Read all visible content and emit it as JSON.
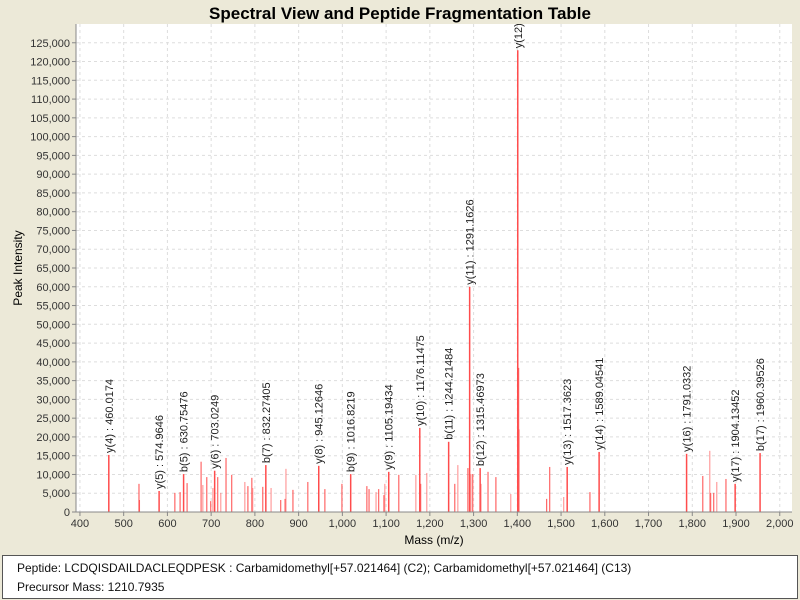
{
  "chart_data": {
    "type": "bar",
    "title": "Spectral View and Peptide Fragmentation Table",
    "xlabel": "Mass (m/z)",
    "ylabel": "Peak Intensity",
    "xlim": [
      391,
      2028
    ],
    "ylim": [
      0,
      130000
    ],
    "grid": true,
    "x_ticks": [
      "400",
      "500",
      "600",
      "700",
      "800",
      "900",
      "1,000",
      "1,100",
      "1,200",
      "1,300",
      "1,400",
      "1,500",
      "1,600",
      "1,700",
      "1,800",
      "1,900",
      "2,000"
    ],
    "x_tick_values": [
      400,
      500,
      600,
      700,
      800,
      900,
      1000,
      1100,
      1200,
      1300,
      1400,
      1500,
      1600,
      1700,
      1800,
      1900,
      2000
    ],
    "y_ticks": [
      "0",
      "5,000",
      "10,000",
      "15,000",
      "20,000",
      "25,000",
      "30,000",
      "35,000",
      "40,000",
      "45,000",
      "50,000",
      "55,000",
      "60,000",
      "65,000",
      "70,000",
      "75,000",
      "80,000",
      "85,000",
      "90,000",
      "95,000",
      "100,000",
      "105,000",
      "110,000",
      "115,000",
      "120,000",
      "125,000"
    ],
    "y_tick_values": [
      0,
      5000,
      10000,
      15000,
      20000,
      25000,
      30000,
      35000,
      40000,
      45000,
      50000,
      55000,
      60000,
      65000,
      70000,
      75000,
      80000,
      85000,
      90000,
      95000,
      100000,
      105000,
      110000,
      115000,
      120000,
      125000
    ],
    "peaks": [
      {
        "mz": 466,
        "intensity": 15200,
        "label": "y(4) : 460.0174"
      },
      {
        "mz": 535,
        "intensity": 7500
      },
      {
        "mz": 536,
        "intensity": 3200
      },
      {
        "mz": 581,
        "intensity": 5600,
        "label": "y(5) : 574.9646"
      },
      {
        "mz": 617,
        "intensity": 5100
      },
      {
        "mz": 629,
        "intensity": 5300
      },
      {
        "mz": 637,
        "intensity": 10100,
        "label": "b(5) : 630.75476"
      },
      {
        "mz": 645,
        "intensity": 7700
      },
      {
        "mz": 677,
        "intensity": 13400
      },
      {
        "mz": 681,
        "intensity": 7200
      },
      {
        "mz": 690,
        "intensity": 9300
      },
      {
        "mz": 699,
        "intensity": 2900
      },
      {
        "mz": 704,
        "intensity": 6400
      },
      {
        "mz": 708,
        "intensity": 11000,
        "label": "y(6) : 703.0249"
      },
      {
        "mz": 715,
        "intensity": 9300
      },
      {
        "mz": 722,
        "intensity": 5100
      },
      {
        "mz": 734,
        "intensity": 14400
      },
      {
        "mz": 747,
        "intensity": 9900
      },
      {
        "mz": 777,
        "intensity": 8000
      },
      {
        "mz": 784,
        "intensity": 6900
      },
      {
        "mz": 793,
        "intensity": 9100
      },
      {
        "mz": 795,
        "intensity": 6400
      },
      {
        "mz": 818,
        "intensity": 6700
      },
      {
        "mz": 825,
        "intensity": 12500,
        "label": "b(7) : 832.27405"
      },
      {
        "mz": 837,
        "intensity": 6400
      },
      {
        "mz": 859,
        "intensity": 3200
      },
      {
        "mz": 869,
        "intensity": 3500
      },
      {
        "mz": 871,
        "intensity": 11500
      },
      {
        "mz": 887,
        "intensity": 5900
      },
      {
        "mz": 921,
        "intensity": 8000
      },
      {
        "mz": 946,
        "intensity": 12300,
        "label": "y(8) : 945.12646"
      },
      {
        "mz": 960,
        "intensity": 6100
      },
      {
        "mz": 999,
        "intensity": 7500
      },
      {
        "mz": 1019,
        "intensity": 10100,
        "label": "b(9) : 1016.8219"
      },
      {
        "mz": 1056,
        "intensity": 6900
      },
      {
        "mz": 1061,
        "intensity": 6100
      },
      {
        "mz": 1077,
        "intensity": 5300
      },
      {
        "mz": 1083,
        "intensity": 6100
      },
      {
        "mz": 1095,
        "intensity": 4500
      },
      {
        "mz": 1097,
        "intensity": 7500
      },
      {
        "mz": 1106,
        "intensity": 10700,
        "label": "y(9) : 1105.19434"
      },
      {
        "mz": 1129,
        "intensity": 9900
      },
      {
        "mz": 1168,
        "intensity": 9900
      },
      {
        "mz": 1177,
        "intensity": 22400,
        "label": "y(10) : 1176.11475"
      },
      {
        "mz": 1179,
        "intensity": 7500
      },
      {
        "mz": 1193,
        "intensity": 10400
      },
      {
        "mz": 1243,
        "intensity": 18700,
        "label": "b(11) : 1244.21484"
      },
      {
        "mz": 1257,
        "intensity": 7500
      },
      {
        "mz": 1264,
        "intensity": 12500
      },
      {
        "mz": 1287,
        "intensity": 11700
      },
      {
        "mz": 1291,
        "intensity": 60000,
        "label": "y(11) : 1291.1626"
      },
      {
        "mz": 1294,
        "intensity": 10100
      },
      {
        "mz": 1298,
        "intensity": 10100
      },
      {
        "mz": 1315,
        "intensity": 11700,
        "label": "b(12) : 1315.46973"
      },
      {
        "mz": 1317,
        "intensity": 7500
      },
      {
        "mz": 1333,
        "intensity": 10700
      },
      {
        "mz": 1351,
        "intensity": 9300
      },
      {
        "mz": 1385,
        "intensity": 4800
      },
      {
        "mz": 1401,
        "intensity": 123000,
        "label": "y(12)"
      },
      {
        "mz": 1403,
        "intensity": 38400
      },
      {
        "mz": 1404,
        "intensity": 22000
      },
      {
        "mz": 1467,
        "intensity": 3500
      },
      {
        "mz": 1474,
        "intensity": 12000
      },
      {
        "mz": 1506,
        "intensity": 4000
      },
      {
        "mz": 1514,
        "intensity": 12000,
        "label": "y(13) : 1517.3623"
      },
      {
        "mz": 1566,
        "intensity": 5300
      },
      {
        "mz": 1587,
        "intensity": 16000,
        "label": "y(14) : 1589.04541"
      },
      {
        "mz": 1787,
        "intensity": 15500,
        "label": "y(16) : 1791.0332"
      },
      {
        "mz": 1824,
        "intensity": 9600
      },
      {
        "mz": 1840,
        "intensity": 16300
      },
      {
        "mz": 1842,
        "intensity": 5100
      },
      {
        "mz": 1849,
        "intensity": 5100
      },
      {
        "mz": 1856,
        "intensity": 8000
      },
      {
        "mz": 1877,
        "intensity": 8800
      },
      {
        "mz": 1898,
        "intensity": 7500,
        "label": "y(17) : 1904.13452"
      },
      {
        "mz": 1955,
        "intensity": 15700,
        "label": "b(17) : 1960.39526"
      }
    ],
    "peak_color": "#ff4c4c"
  },
  "info": {
    "peptide": "Peptide: LCDQISDAILDACLEQDPESK : Carbamidomethyl[+57.021464] (C2); Carbamidomethyl[+57.021464] (C13)",
    "precursor": "Precursor Mass: 1210.7935"
  }
}
